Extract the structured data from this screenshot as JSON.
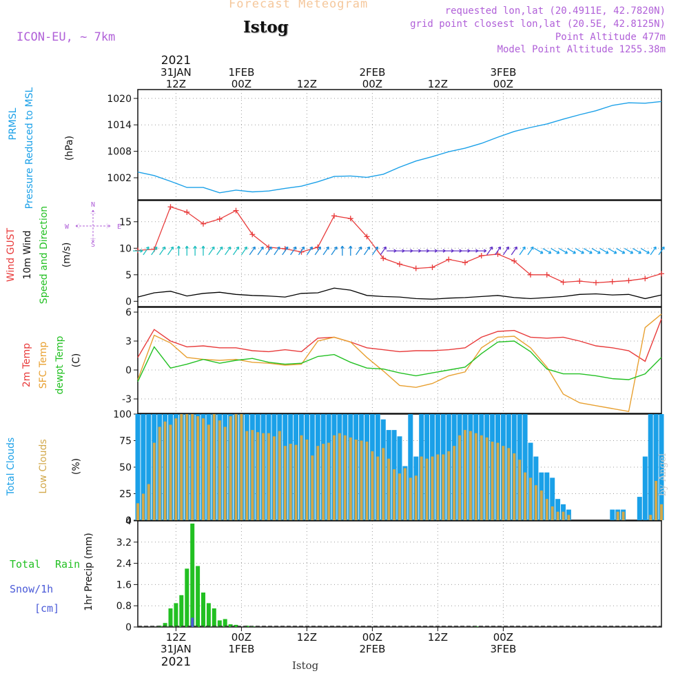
{
  "header": {
    "title": "Forecast Meteogram",
    "location": "Istog",
    "model": "ICON-EU, ~ 7km",
    "requested": "requested lon,lat (20.4911E, 42.7820N)",
    "grid_point": "grid point closest lon,lat (20.5E, 42.8125N)",
    "point_altitude": "Point Altitude 477m",
    "model_altitude": "Model Point Altitude 1255.38m",
    "footer": "Istog",
    "credit": "by Angel"
  },
  "colors": {
    "pressure": "#1aa0e8",
    "gust": "#e83a3a",
    "wind": "#000000",
    "temp2m": "#e83a3a",
    "sfc": "#e8a030",
    "dewpt": "#22c022",
    "total_clouds": "#1aa0e8",
    "low_clouds": "#d2a84a",
    "rain": "#22c022",
    "snow": "#4a5ad8",
    "purple": "#b060d8"
  },
  "chart_data": [
    {
      "panel": "pressure",
      "type": "line",
      "ylabels": [
        "PRMSL",
        "Pressure Reduced to MSL",
        "(hPa)"
      ],
      "yticks": [
        "1002",
        "1008",
        "1014",
        "1020"
      ],
      "ylim": [
        997,
        1022
      ],
      "x_hours": [
        0,
        3,
        6,
        9,
        12,
        15,
        18,
        21,
        24,
        27,
        30,
        33,
        36,
        39,
        42,
        45,
        48,
        51,
        54,
        57,
        60,
        63,
        66,
        69,
        72,
        75,
        78,
        81,
        84,
        87,
        90,
        93,
        96
      ],
      "series": [
        {
          "name": "PRMSL",
          "values": [
            1003.3,
            1002.5,
            1001.2,
            999.8,
            999.8,
            998.6,
            999.2,
            998.8,
            999.0,
            999.6,
            1000.1,
            1001.1,
            1002.3,
            1002.4,
            1002.1,
            1002.8,
            1004.4,
            1005.8,
            1006.8,
            1007.9,
            1008.7,
            1009.8,
            1011.2,
            1012.5,
            1013.4,
            1014.2,
            1015.3,
            1016.3,
            1017.2,
            1018.4,
            1019.0,
            1018.9,
            1019.3
          ]
        }
      ]
    },
    {
      "panel": "wind",
      "type": "line",
      "ylabels": [
        "Wind GUST",
        "10m Wind",
        "Speed and Direction",
        "(m/s)"
      ],
      "yticks": [
        "0",
        "5",
        "10",
        "15"
      ],
      "ylim": [
        -1,
        19
      ],
      "x_hours": [
        0,
        3,
        6,
        9,
        12,
        15,
        18,
        21,
        24,
        27,
        30,
        33,
        36,
        39,
        42,
        45,
        48,
        51,
        54,
        57,
        60,
        63,
        66,
        69,
        72,
        75,
        78,
        81,
        84,
        87,
        90,
        93,
        96
      ],
      "series": [
        {
          "name": "Wind GUST",
          "values": [
            9.6,
            9.8,
            17.8,
            16.8,
            14.6,
            15.5,
            17.1,
            12.6,
            10.2,
            9.9,
            9.3,
            10.2,
            16.1,
            15.6,
            12.2,
            8.1,
            7.0,
            6.2,
            6.4,
            7.9,
            7.3,
            8.6,
            8.9,
            7.6,
            5.0,
            5.0,
            3.6,
            3.8,
            3.5,
            3.7,
            3.9,
            4.3,
            5.2
          ]
        },
        {
          "name": "10m Wind",
          "values": [
            0.8,
            1.6,
            1.9,
            1.0,
            1.5,
            1.7,
            1.3,
            1.1,
            1.0,
            0.8,
            1.5,
            1.6,
            2.5,
            2.1,
            1.1,
            0.9,
            0.8,
            0.5,
            0.4,
            0.6,
            0.7,
            0.9,
            1.1,
            0.7,
            0.5,
            0.7,
            0.9,
            1.3,
            1.4,
            1.2,
            1.3,
            0.5,
            1.2
          ]
        }
      ],
      "barb_dirs": [
        "e",
        "ne",
        "ne",
        "n",
        "n",
        "ne",
        "ne",
        "ne",
        "ne",
        "ne",
        "ne",
        "ne",
        "ne",
        "n",
        "ne",
        "ne",
        "e",
        "e",
        "e",
        "e",
        "e",
        "e",
        "ne",
        "ne",
        "ne",
        "se",
        "se",
        "se",
        "se",
        "se",
        "se",
        "se",
        "ne"
      ],
      "compass": {
        "n": "N",
        "s": "S",
        "e": "E",
        "w": "W"
      }
    },
    {
      "panel": "temperature",
      "type": "line",
      "ylabels": [
        "2m Temp",
        "SFC Temp",
        "dewpt Temp",
        "(C)"
      ],
      "yticks": [
        "-3",
        "0",
        "3",
        "6"
      ],
      "ylim": [
        -4.5,
        6.5
      ],
      "x_hours": [
        0,
        3,
        6,
        9,
        12,
        15,
        18,
        21,
        24,
        27,
        30,
        33,
        36,
        39,
        42,
        45,
        48,
        51,
        54,
        57,
        60,
        63,
        66,
        69,
        72,
        75,
        78,
        81,
        84,
        87,
        90,
        93,
        96
      ],
      "series": [
        {
          "name": "2m Temp",
          "values": [
            1.3,
            4.2,
            3.0,
            2.4,
            2.5,
            2.3,
            2.3,
            2.0,
            1.9,
            2.1,
            1.9,
            3.3,
            3.4,
            2.9,
            2.3,
            2.1,
            1.9,
            2.0,
            2.0,
            2.1,
            2.3,
            3.4,
            4.0,
            4.1,
            3.4,
            3.3,
            3.4,
            3.0,
            2.5,
            2.3,
            2.0,
            0.9,
            5.3
          ]
        },
        {
          "name": "SFC Temp",
          "values": [
            -1.0,
            3.6,
            2.8,
            1.3,
            1.1,
            1.0,
            1.1,
            0.8,
            0.7,
            0.5,
            0.6,
            3.0,
            3.4,
            2.9,
            1.3,
            -0.1,
            -1.6,
            -1.8,
            -1.4,
            -0.6,
            -0.2,
            2.3,
            3.4,
            3.5,
            2.3,
            0.3,
            -2.5,
            -3.4,
            -3.7,
            -4.0,
            -4.3,
            4.4,
            5.8
          ]
        },
        {
          "name": "dewpt Temp",
          "values": [
            -1.2,
            2.4,
            0.2,
            0.6,
            1.1,
            0.7,
            1.0,
            1.2,
            0.8,
            0.6,
            0.7,
            1.4,
            1.6,
            0.8,
            0.2,
            0.1,
            -0.3,
            -0.6,
            -0.3,
            0.0,
            0.3,
            1.7,
            2.9,
            3.0,
            1.9,
            0.1,
            -0.4,
            -0.4,
            -0.6,
            -0.9,
            -1.0,
            -0.4,
            1.3
          ]
        }
      ]
    },
    {
      "panel": "clouds",
      "type": "bar",
      "ylabels": [
        "Total Clouds",
        "Low Clouds",
        "(%)"
      ],
      "yticks": [
        "0",
        "25",
        "50",
        "75",
        "100"
      ],
      "ylim": [
        0,
        100
      ],
      "x_hours": [
        0,
        1,
        2,
        3,
        4,
        5,
        6,
        7,
        8,
        9,
        10,
        11,
        12,
        13,
        14,
        15,
        16,
        17,
        18,
        19,
        20,
        21,
        22,
        23,
        24,
        25,
        26,
        27,
        28,
        29,
        30,
        31,
        32,
        33,
        34,
        35,
        36,
        37,
        38,
        39,
        40,
        41,
        42,
        43,
        44,
        45,
        46,
        47,
        48,
        49,
        50,
        51,
        52,
        53,
        54,
        55,
        56,
        57,
        58,
        59,
        60,
        61,
        62,
        63,
        64,
        65,
        66,
        67,
        68,
        69,
        70,
        71,
        72,
        73,
        74,
        75,
        76,
        77,
        78,
        79,
        80,
        81,
        82,
        83,
        84,
        85,
        86,
        87,
        88,
        89,
        90,
        91,
        92,
        93,
        94,
        95,
        96
      ],
      "series": [
        {
          "name": "Total Clouds",
          "values": [
            100,
            100,
            100,
            100,
            100,
            100,
            100,
            100,
            100,
            100,
            100,
            100,
            100,
            100,
            100,
            100,
            100,
            100,
            100,
            100,
            100,
            100,
            100,
            100,
            100,
            100,
            100,
            100,
            100,
            100,
            100,
            100,
            100,
            100,
            100,
            100,
            100,
            100,
            100,
            100,
            100,
            100,
            100,
            100,
            100,
            95,
            85,
            85,
            79,
            51,
            100,
            60,
            100,
            100,
            100,
            100,
            100,
            100,
            100,
            100,
            100,
            100,
            100,
            100,
            100,
            100,
            100,
            100,
            100,
            100,
            100,
            100,
            73,
            60,
            45,
            45,
            40,
            20,
            15,
            10,
            0,
            0,
            0,
            0,
            0,
            0,
            0,
            10,
            10,
            10,
            0,
            0,
            22,
            60,
            100,
            100,
            100
          ]
        },
        {
          "name": "Low Clouds",
          "values": [
            16,
            25,
            34,
            73,
            88,
            93,
            90,
            96,
            100,
            100,
            100,
            98,
            96,
            90,
            100,
            94,
            88,
            98,
            100,
            100,
            84,
            85,
            83,
            82,
            82,
            79,
            84,
            70,
            72,
            71,
            80,
            76,
            61,
            70,
            72,
            73,
            80,
            82,
            80,
            78,
            76,
            75,
            74,
            65,
            60,
            68,
            58,
            48,
            44,
            49,
            40,
            42,
            60,
            58,
            60,
            62,
            62,
            65,
            70,
            80,
            85,
            84,
            82,
            80,
            78,
            74,
            73,
            70,
            68,
            63,
            57,
            45,
            40,
            33,
            28,
            20,
            13,
            8,
            8,
            5,
            0,
            0,
            0,
            0,
            0,
            0,
            0,
            0,
            8,
            8,
            0,
            0,
            0,
            0,
            5,
            37,
            15
          ]
        }
      ]
    },
    {
      "panel": "precip",
      "type": "bar",
      "ylabels": [
        "Total Rain",
        "Snow/1h",
        "[cm]",
        "1hr Precip (mm)"
      ],
      "yticks": [
        "0",
        "0.8",
        "1.6",
        "2.4",
        "3.2",
        "4"
      ],
      "ylim": [
        0,
        4
      ],
      "x_hours": [
        4,
        5,
        6,
        7,
        8,
        9,
        10,
        11,
        12,
        13,
        14,
        15,
        16,
        17,
        18,
        20,
        21,
        62
      ],
      "series": [
        {
          "name": "Total Rain",
          "values": [
            0.05,
            0.15,
            0.7,
            0.9,
            1.2,
            2.2,
            3.9,
            2.3,
            1.3,
            0.9,
            0.7,
            0.25,
            0.3,
            0.1,
            0.08,
            0.05,
            0.02,
            0.02
          ]
        },
        {
          "name": "Snow/1h",
          "values": [
            0,
            0,
            0,
            0,
            0,
            0,
            0.35,
            0,
            0,
            0,
            0,
            0,
            0,
            0,
            0,
            0,
            0,
            0
          ]
        }
      ]
    }
  ],
  "time_axis": {
    "top": [
      {
        "l1": "2021",
        "l2": "31JAN",
        "l3": "12Z"
      },
      {
        "l1": "",
        "l2": "1FEB",
        "l3": "00Z"
      },
      {
        "l1": "",
        "l2": "",
        "l3": "12Z"
      },
      {
        "l1": "",
        "l2": "2FEB",
        "l3": "00Z"
      },
      {
        "l1": "",
        "l2": "",
        "l3": "12Z"
      },
      {
        "l1": "",
        "l2": "3FEB",
        "l3": "00Z"
      }
    ],
    "bottom": [
      {
        "l1": "12Z",
        "l2": "31JAN",
        "l3": "2021"
      },
      {
        "l1": "00Z",
        "l2": "1FEB",
        "l3": ""
      },
      {
        "l1": "12Z",
        "l2": "",
        "l3": ""
      },
      {
        "l1": "00Z",
        "l2": "2FEB",
        "l3": ""
      },
      {
        "l1": "12Z",
        "l2": "",
        "l3": ""
      },
      {
        "l1": "00Z",
        "l2": "3FEB",
        "l3": ""
      }
    ],
    "tick_hours": [
      7,
      19,
      31,
      43,
      55,
      67
    ],
    "range_hours": [
      0,
      96
    ]
  }
}
